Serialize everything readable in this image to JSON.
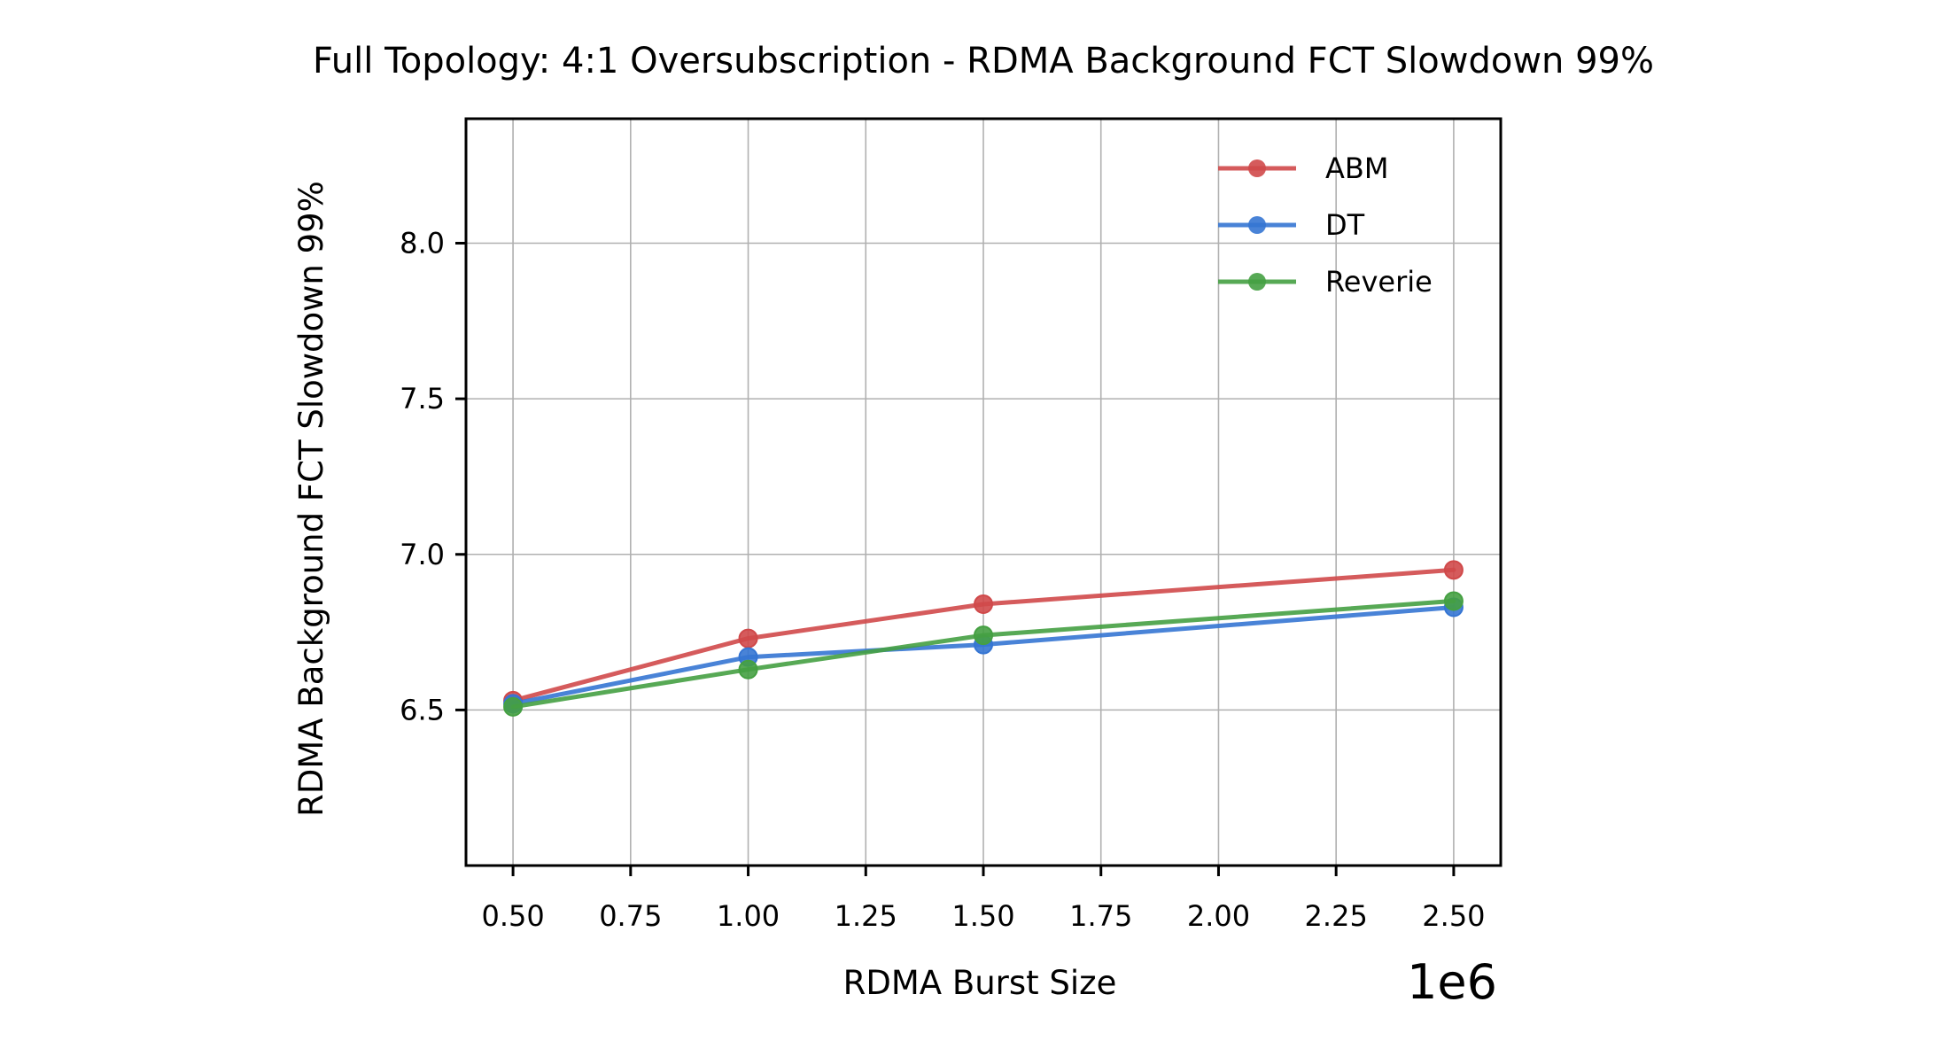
{
  "chart_data": {
    "type": "line",
    "title": "Full Topology: 4:1 Oversubscription - RDMA Background FCT Slowdown 99%",
    "xlabel": "RDMA Burst Size",
    "ylabel": "RDMA Background FCT Slowdown 99%",
    "x_offset_label": "1e6",
    "x": [
      0.5,
      1.0,
      1.5,
      2.5
    ],
    "xlim": [
      0.4,
      2.6
    ],
    "ylim": [
      6.0,
      8.4
    ],
    "x_ticks": [
      0.5,
      0.75,
      1.0,
      1.25,
      1.5,
      1.75,
      2.0,
      2.25,
      2.5
    ],
    "x_tick_labels": [
      "0.50",
      "0.75",
      "1.00",
      "1.25",
      "1.50",
      "1.75",
      "2.00",
      "2.25",
      "2.50"
    ],
    "y_ticks": [
      6.5,
      7.0,
      7.5,
      8.0
    ],
    "y_tick_labels": [
      "6.5",
      "7.0",
      "7.5",
      "8.0"
    ],
    "grid": true,
    "legend_position": "top-right",
    "series": [
      {
        "name": "ABM",
        "color": "#d0494a",
        "values": [
          6.53,
          6.73,
          6.84,
          6.95
        ]
      },
      {
        "name": "DT",
        "color": "#3575d3",
        "values": [
          6.52,
          6.67,
          6.71,
          6.83
        ]
      },
      {
        "name": "Reverie",
        "color": "#45a042",
        "values": [
          6.51,
          6.63,
          6.74,
          6.85
        ]
      }
    ]
  }
}
